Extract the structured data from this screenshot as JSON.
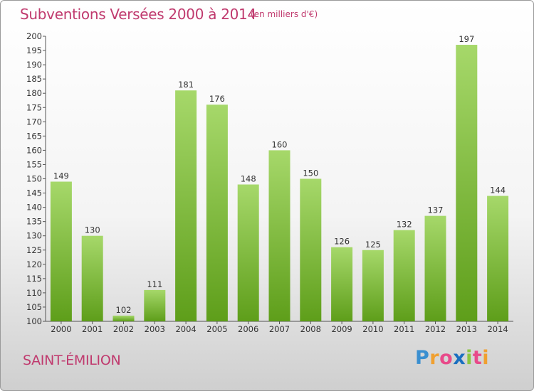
{
  "title": "Subventions Versées 2000 à 2014",
  "subtitle": "(en milliers d'€)",
  "commune": "SAINT-ÉMILION",
  "logo": {
    "letters": [
      "P",
      "r",
      "o",
      "x",
      "i",
      "t",
      "i"
    ],
    "colors": [
      "#3a8fd0",
      "#f0a030",
      "#e84a8a",
      "#1a6fc0",
      "#8cc63f",
      "#e84a8a",
      "#f0a030"
    ]
  },
  "colors": {
    "bar_light": "#a6d86a",
    "bar_dark": "#5e9e1a",
    "accent": "#c03a6e"
  },
  "chart_data": {
    "type": "bar",
    "categories": [
      "2000",
      "2001",
      "2002",
      "2003",
      "2004",
      "2005",
      "2006",
      "2007",
      "2008",
      "2009",
      "2010",
      "2011",
      "2012",
      "2013",
      "2014"
    ],
    "values": [
      149,
      130,
      102,
      111,
      181,
      176,
      148,
      160,
      150,
      126,
      125,
      132,
      137,
      197,
      144
    ],
    "ylim": [
      100,
      200
    ],
    "ytick_step": 5,
    "grid": false
  }
}
